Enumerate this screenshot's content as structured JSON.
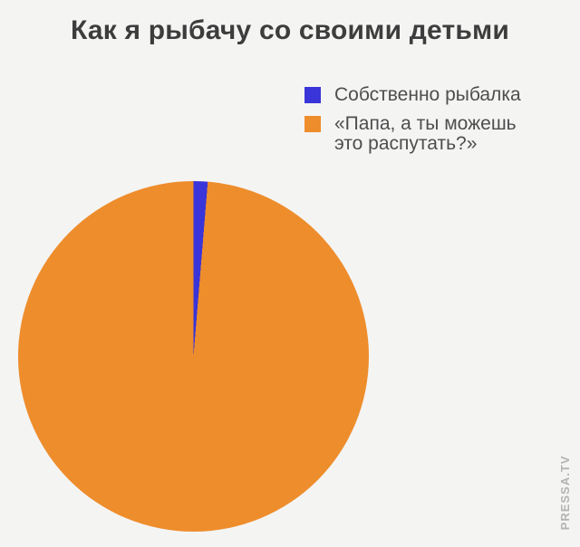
{
  "page": {
    "background": "#f4f4f3",
    "watermark": "PRESSA.TV"
  },
  "chart_data": {
    "type": "pie",
    "title": "Как я рыбачу со своими детьми",
    "series": [
      {
        "name": "Собственно рыбалка",
        "value": 1.3,
        "color": "#3a35d8"
      },
      {
        "name": "«Папа, а ты можешь это распутать?»",
        "value": 98.7,
        "color": "#ee8d2c"
      }
    ],
    "start_angle_deg": 0,
    "legend_position": "top-right",
    "data_labels": "none",
    "background_color": "#f4f4f3"
  }
}
